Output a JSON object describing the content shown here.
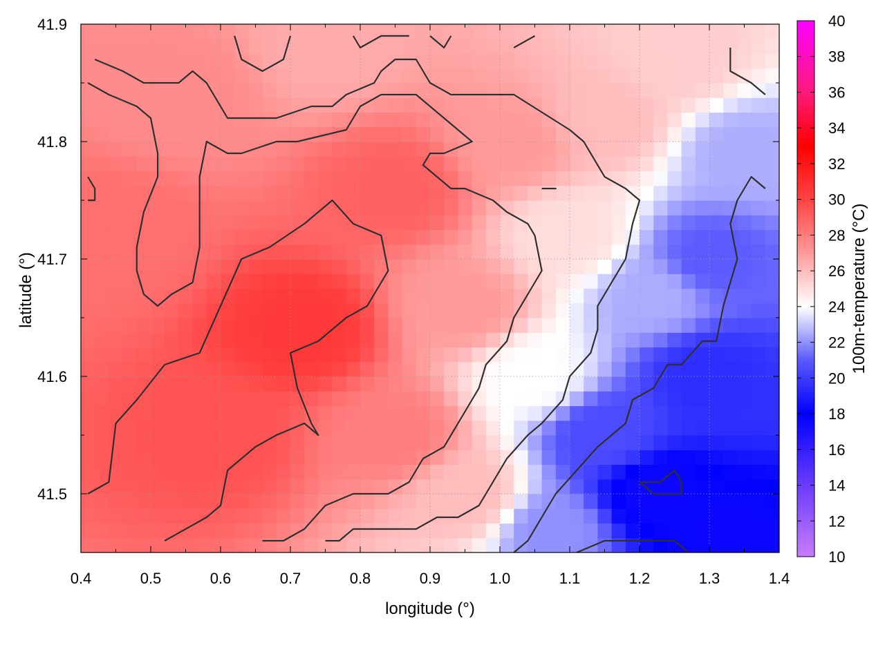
{
  "chart_data": {
    "type": "heatmap",
    "title": "",
    "xlabel": "longitude (°)",
    "ylabel": "latitude (°)",
    "colorbar_label": "100m-temperature (°C)",
    "xlim": [
      0.4,
      1.4
    ],
    "ylim": [
      41.45,
      41.9
    ],
    "x_ticks": [
      "0.4",
      "0.5",
      "0.6",
      "0.7",
      "0.8",
      "0.9",
      "1.0",
      "1.1",
      "1.2",
      "1.3",
      "1.4"
    ],
    "y_ticks": [
      "41.5",
      "41.6",
      "41.7",
      "41.8",
      "41.9"
    ],
    "colorbar_range": [
      10,
      40
    ],
    "colorbar_ticks": [
      "10",
      "12",
      "14",
      "16",
      "18",
      "20",
      "22",
      "24",
      "26",
      "28",
      "30",
      "32",
      "34",
      "36",
      "38",
      "40"
    ],
    "colormap": [
      {
        "value": 10,
        "color": "#c87dff"
      },
      {
        "value": 14,
        "color": "#6a3cff"
      },
      {
        "value": 18,
        "color": "#0000ff"
      },
      {
        "value": 21,
        "color": "#5a5aff"
      },
      {
        "value": 24,
        "color": "#ffffff"
      },
      {
        "value": 27,
        "color": "#ff9a9a"
      },
      {
        "value": 30,
        "color": "#ff4444"
      },
      {
        "value": 33,
        "color": "#ff0000"
      },
      {
        "value": 36,
        "color": "#ff1a7a"
      },
      {
        "value": 40,
        "color": "#ff00ff"
      }
    ],
    "grid": true,
    "field_points": [
      {
        "lon": 0.72,
        "lat": 41.64,
        "temp": 30.5
      },
      {
        "lon": 0.6,
        "lat": 41.55,
        "temp": 29.5
      },
      {
        "lon": 0.85,
        "lat": 41.76,
        "temp": 29.0
      },
      {
        "lon": 0.45,
        "lat": 41.72,
        "temp": 28.5
      },
      {
        "lon": 0.55,
        "lat": 41.84,
        "temp": 27.5
      },
      {
        "lon": 0.85,
        "lat": 41.55,
        "temp": 28.0
      },
      {
        "lon": 0.95,
        "lat": 41.66,
        "temp": 27.0
      },
      {
        "lon": 1.02,
        "lat": 41.8,
        "temp": 27.0
      },
      {
        "lon": 0.95,
        "lat": 41.5,
        "temp": 26.0
      },
      {
        "lon": 0.75,
        "lat": 41.88,
        "temp": 26.5
      },
      {
        "lon": 1.25,
        "lat": 41.87,
        "temp": 25.5
      },
      {
        "lon": 1.15,
        "lat": 41.82,
        "temp": 26.0
      },
      {
        "lon": 1.05,
        "lat": 41.6,
        "temp": 24.0
      },
      {
        "lon": 1.1,
        "lat": 41.72,
        "temp": 25.0
      },
      {
        "lon": 1.22,
        "lat": 41.5,
        "temp": 17.5
      },
      {
        "lon": 1.33,
        "lat": 41.46,
        "temp": 17.5
      },
      {
        "lon": 1.3,
        "lat": 41.6,
        "temp": 19.5
      },
      {
        "lon": 1.15,
        "lat": 41.55,
        "temp": 20.5
      },
      {
        "lon": 1.3,
        "lat": 41.7,
        "temp": 21.0
      },
      {
        "lon": 1.35,
        "lat": 41.79,
        "temp": 22.5
      },
      {
        "lon": 1.08,
        "lat": 41.47,
        "temp": 22.0
      },
      {
        "lon": 1.22,
        "lat": 41.67,
        "temp": 22.5
      }
    ],
    "contours": [
      [
        [
          0.72,
          41.73
        ],
        [
          0.67,
          41.71
        ],
        [
          0.63,
          41.7
        ],
        [
          0.6,
          41.66
        ],
        [
          0.57,
          41.62
        ],
        [
          0.52,
          41.61
        ],
        [
          0.48,
          41.58
        ],
        [
          0.45,
          41.56
        ],
        [
          0.44,
          41.51
        ],
        [
          0.41,
          41.5
        ]
      ],
      [
        [
          0.52,
          41.46
        ],
        [
          0.55,
          41.47
        ],
        [
          0.58,
          41.48
        ],
        [
          0.6,
          41.49
        ],
        [
          0.61,
          41.52
        ],
        [
          0.63,
          41.53
        ],
        [
          0.65,
          41.54
        ],
        [
          0.68,
          41.55
        ],
        [
          0.72,
          41.56
        ],
        [
          0.74,
          41.55
        ],
        [
          0.73,
          41.56
        ],
        [
          0.71,
          41.59
        ],
        [
          0.7,
          41.62
        ],
        [
          0.74,
          41.63
        ],
        [
          0.78,
          41.65
        ],
        [
          0.81,
          41.66
        ],
        [
          0.84,
          41.69
        ],
        [
          0.83,
          41.72
        ],
        [
          0.79,
          41.73
        ],
        [
          0.76,
          41.75
        ],
        [
          0.72,
          41.73
        ]
      ],
      [
        [
          0.41,
          41.85
        ],
        [
          0.44,
          41.84
        ],
        [
          0.48,
          41.83
        ],
        [
          0.5,
          41.82
        ],
        [
          0.51,
          41.79
        ],
        [
          0.51,
          41.77
        ],
        [
          0.49,
          41.74
        ],
        [
          0.48,
          41.71
        ],
        [
          0.48,
          41.69
        ],
        [
          0.49,
          41.67
        ],
        [
          0.51,
          41.66
        ],
        [
          0.53,
          41.67
        ],
        [
          0.56,
          41.68
        ],
        [
          0.57,
          41.71
        ],
        [
          0.57,
          41.74
        ],
        [
          0.57,
          41.77
        ],
        [
          0.58,
          41.8
        ],
        [
          0.61,
          41.79
        ],
        [
          0.63,
          41.79
        ],
        [
          0.68,
          41.8
        ],
        [
          0.71,
          41.8
        ],
        [
          0.78,
          41.81
        ],
        [
          0.8,
          41.83
        ],
        [
          0.83,
          41.84
        ],
        [
          0.85,
          41.84
        ],
        [
          0.88,
          41.84
        ],
        [
          0.92,
          41.82
        ],
        [
          0.94,
          41.81
        ],
        [
          0.96,
          41.8
        ],
        [
          0.92,
          41.79
        ],
        [
          0.9,
          41.79
        ],
        [
          0.89,
          41.78
        ],
        [
          0.93,
          41.76
        ],
        [
          0.95,
          41.76
        ],
        [
          0.99,
          41.75
        ],
        [
          1.01,
          41.74
        ],
        [
          1.04,
          41.73
        ],
        [
          1.05,
          41.72
        ],
        [
          1.06,
          41.69
        ],
        [
          1.04,
          41.67
        ],
        [
          1.02,
          41.65
        ],
        [
          1.01,
          41.63
        ],
        [
          0.98,
          41.61
        ],
        [
          0.97,
          41.59
        ],
        [
          0.96,
          41.58
        ],
        [
          0.94,
          41.56
        ],
        [
          0.92,
          41.54
        ],
        [
          0.89,
          41.53
        ],
        [
          0.87,
          41.51
        ],
        [
          0.84,
          41.5
        ],
        [
          0.79,
          41.5
        ],
        [
          0.75,
          41.49
        ],
        [
          0.72,
          41.47
        ],
        [
          0.69,
          41.46
        ],
        [
          0.66,
          41.46
        ]
      ],
      [
        [
          0.42,
          41.87
        ],
        [
          0.46,
          41.86
        ],
        [
          0.49,
          41.85
        ],
        [
          0.54,
          41.85
        ],
        [
          0.56,
          41.86
        ],
        [
          0.58,
          41.85
        ],
        [
          0.61,
          41.82
        ],
        [
          0.63,
          41.82
        ],
        [
          0.68,
          41.82
        ],
        [
          0.73,
          41.83
        ],
        [
          0.76,
          41.83
        ],
        [
          0.78,
          41.84
        ],
        [
          0.82,
          41.85
        ],
        [
          0.83,
          41.86
        ],
        [
          0.85,
          41.87
        ],
        [
          0.88,
          41.87
        ],
        [
          0.9,
          41.85
        ],
        [
          0.93,
          41.84
        ],
        [
          1.02,
          41.84
        ],
        [
          1.1,
          41.81
        ],
        [
          1.12,
          41.8
        ],
        [
          1.15,
          41.77
        ],
        [
          1.18,
          41.76
        ],
        [
          1.2,
          41.75
        ],
        [
          1.19,
          41.73
        ],
        [
          1.18,
          41.7
        ],
        [
          1.16,
          41.68
        ],
        [
          1.14,
          41.66
        ],
        [
          1.14,
          41.64
        ],
        [
          1.13,
          41.62
        ],
        [
          1.1,
          41.6
        ],
        [
          1.09,
          41.58
        ],
        [
          1.06,
          41.56
        ],
        [
          1.04,
          41.55
        ],
        [
          1.01,
          41.53
        ],
        [
          0.99,
          41.51
        ],
        [
          0.97,
          41.49
        ],
        [
          0.94,
          41.48
        ],
        [
          0.91,
          41.48
        ],
        [
          0.88,
          41.47
        ],
        [
          0.84,
          41.47
        ],
        [
          0.79,
          41.47
        ],
        [
          0.77,
          41.46
        ],
        [
          0.75,
          41.46
        ]
      ],
      [
        [
          1.02,
          41.45
        ],
        [
          1.04,
          41.46
        ],
        [
          1.06,
          41.48
        ],
        [
          1.08,
          41.5
        ],
        [
          1.11,
          41.52
        ],
        [
          1.14,
          41.54
        ],
        [
          1.18,
          41.56
        ],
        [
          1.19,
          41.58
        ],
        [
          1.22,
          41.59
        ],
        [
          1.24,
          41.61
        ],
        [
          1.26,
          41.61
        ],
        [
          1.29,
          41.63
        ],
        [
          1.31,
          41.63
        ],
        [
          1.32,
          41.66
        ],
        [
          1.33,
          41.68
        ],
        [
          1.34,
          41.7
        ],
        [
          1.33,
          41.73
        ],
        [
          1.34,
          41.75
        ],
        [
          1.36,
          41.77
        ],
        [
          1.38,
          41.76
        ]
      ],
      [
        [
          1.11,
          41.45
        ],
        [
          1.15,
          41.46
        ],
        [
          1.18,
          41.46
        ],
        [
          1.25,
          41.46
        ],
        [
          1.27,
          41.45
        ]
      ],
      [
        [
          1.2,
          41.51
        ],
        [
          1.23,
          41.51
        ],
        [
          1.25,
          41.52
        ],
        [
          1.26,
          41.51
        ],
        [
          1.26,
          41.5
        ],
        [
          1.22,
          41.5
        ],
        [
          1.2,
          41.51
        ]
      ],
      [
        [
          0.62,
          41.89
        ],
        [
          0.63,
          41.87
        ],
        [
          0.66,
          41.86
        ],
        [
          0.69,
          41.87
        ],
        [
          0.7,
          41.89
        ]
      ],
      [
        [
          0.79,
          41.89
        ],
        [
          0.8,
          41.88
        ],
        [
          0.83,
          41.89
        ],
        [
          0.87,
          41.89
        ]
      ],
      [
        [
          0.9,
          41.89
        ],
        [
          0.92,
          41.88
        ],
        [
          0.93,
          41.89
        ]
      ],
      [
        [
          1.02,
          41.88
        ],
        [
          1.05,
          41.89
        ]
      ],
      [
        [
          1.33,
          41.88
        ],
        [
          1.33,
          41.86
        ],
        [
          1.36,
          41.85
        ],
        [
          1.38,
          41.84
        ]
      ],
      [
        [
          1.06,
          41.76
        ],
        [
          1.07,
          41.76
        ],
        [
          1.08,
          41.76
        ],
        [
          1.07,
          41.76
        ],
        [
          1.06,
          41.76
        ]
      ],
      [
        [
          0.41,
          41.77
        ],
        [
          0.42,
          41.76
        ],
        [
          0.42,
          41.75
        ],
        [
          0.41,
          41.75
        ]
      ]
    ]
  }
}
